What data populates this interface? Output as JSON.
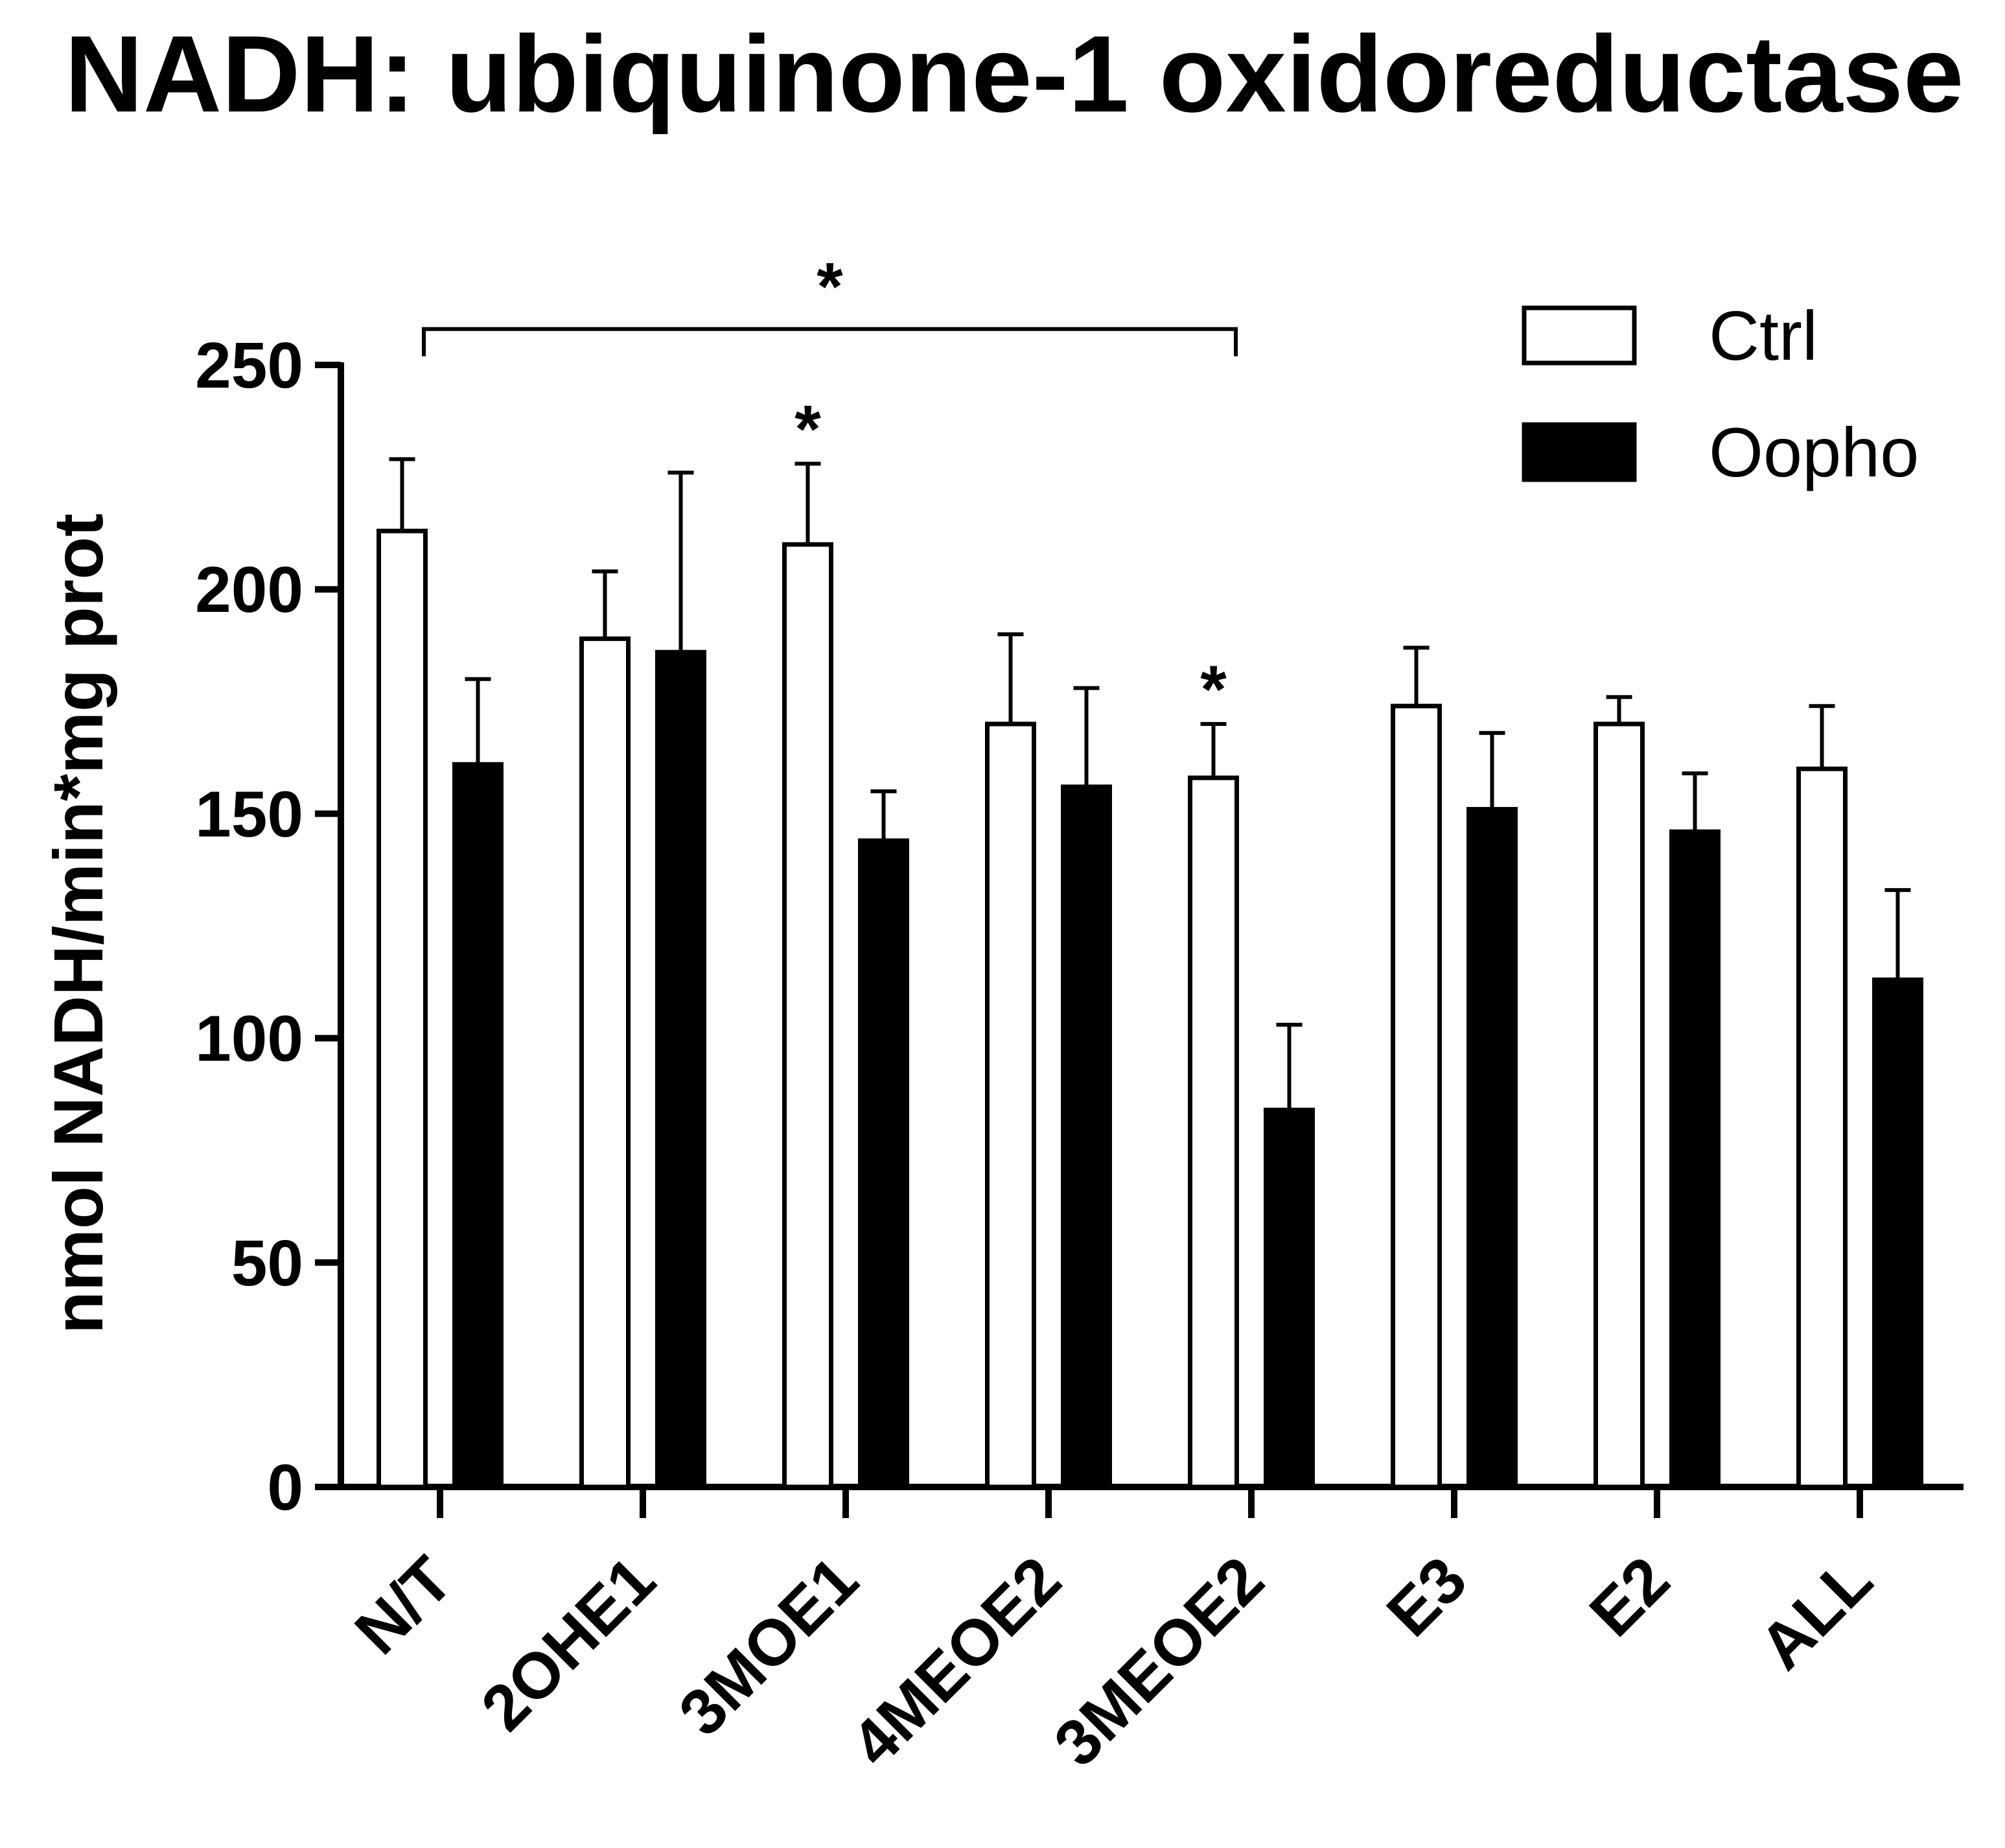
{
  "chart_data": {
    "type": "bar",
    "title": "NADH: ubiquinone-1 oxidoreductase",
    "xlabel": "",
    "ylabel": "nmol NADH/min*mg prot",
    "ylim": [
      0,
      250
    ],
    "yticks": [
      0,
      50,
      100,
      150,
      200,
      250
    ],
    "categories": [
      "N/T",
      "2OHE1",
      "3MOE1",
      "4MEOE2",
      "3MEOE2",
      "E3",
      "E2",
      "ALL"
    ],
    "series": [
      {
        "name": "Ctrl",
        "color": "#ffffff",
        "values": [
          213,
          189,
          210,
          170,
          158,
          174,
          170,
          160
        ],
        "errors": [
          16,
          15,
          18,
          20,
          12,
          13,
          6,
          14
        ]
      },
      {
        "name": "Oopho",
        "color": "#000000",
        "values": [
          161,
          186,
          144,
          156,
          84,
          151,
          146,
          113
        ],
        "errors": [
          19,
          40,
          11,
          22,
          19,
          17,
          13,
          20
        ]
      }
    ],
    "legend": {
      "position": "top-right",
      "entries": [
        "Ctrl",
        "Oopho"
      ]
    },
    "annotations": [
      {
        "type": "bracket",
        "from_category": "N/T",
        "to_category": "3MEOE2",
        "y": 258,
        "label": "*"
      },
      {
        "type": "marker",
        "category": "3MOE1",
        "series": "Ctrl",
        "label": "*"
      },
      {
        "type": "marker",
        "category": "3MEOE2",
        "series": "Ctrl",
        "label": "*"
      }
    ],
    "grid": false
  }
}
